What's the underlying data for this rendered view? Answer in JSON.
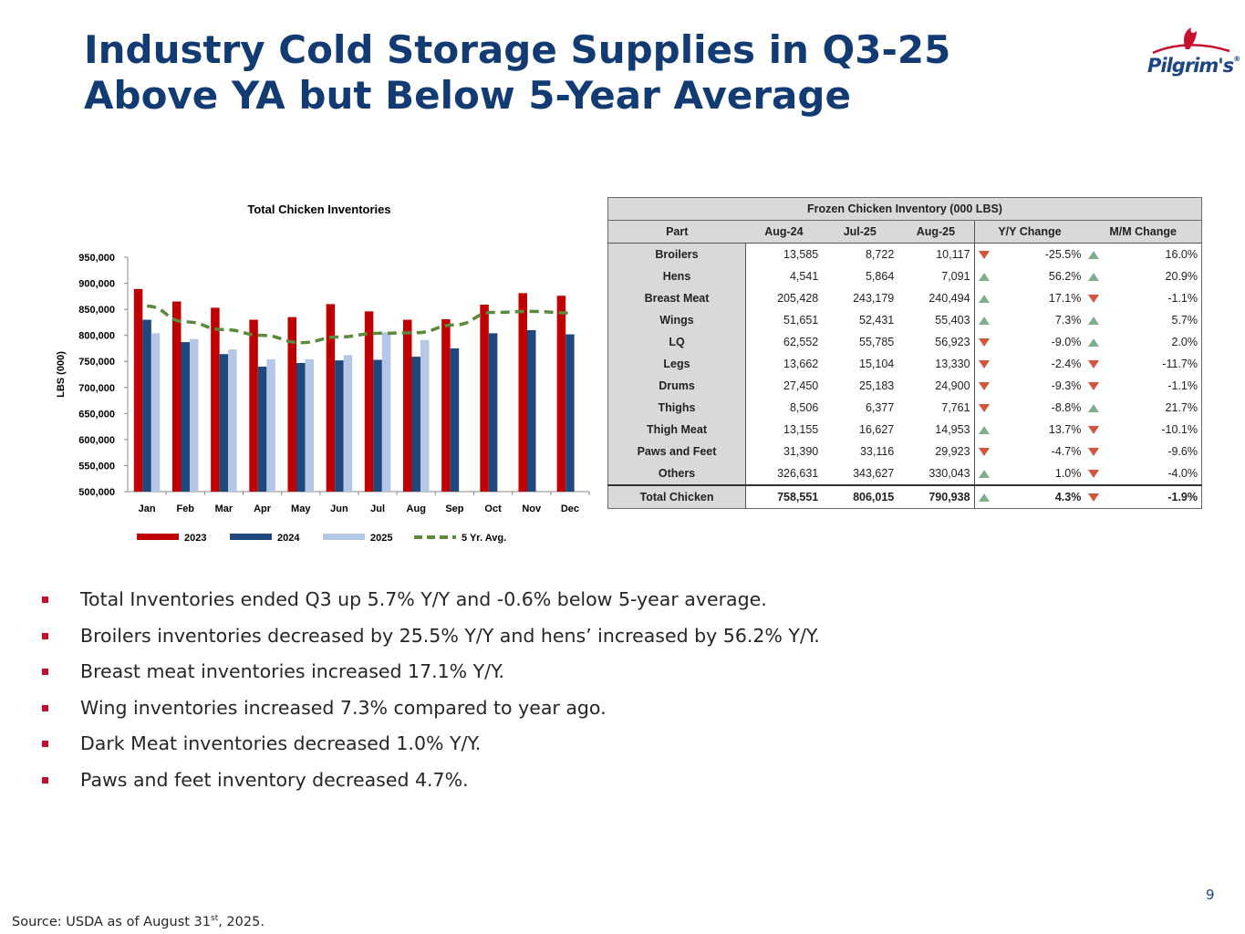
{
  "title": {
    "line1": "Industry Cold Storage Supplies in Q3-25",
    "line2": "Above YA but Below 5-Year Average"
  },
  "logo": {
    "text": "Pilgrim's",
    "reg": "®"
  },
  "colors": {
    "title": "#123a73",
    "s2023": "#c00000",
    "s2024": "#1f497d",
    "s2025": "#b4c7e7",
    "avg": "#5b8a3c",
    "bullet": "#c8102e",
    "up": "#7fae8c",
    "down": "#d2553c"
  },
  "chart_data": {
    "type": "bar",
    "title": "Total Chicken Inventories",
    "xlabel": "",
    "ylabel": "LBS (000)",
    "ylim": [
      500000,
      950000
    ],
    "yticks": [
      500000,
      550000,
      600000,
      650000,
      700000,
      750000,
      800000,
      850000,
      900000,
      950000
    ],
    "ytick_labels": [
      "500,000",
      "550,000",
      "600,000",
      "650,000",
      "700,000",
      "750,000",
      "800,000",
      "850,000",
      "900,000",
      "950,000"
    ],
    "categories": [
      "Jan",
      "Feb",
      "Mar",
      "Apr",
      "May",
      "Jun",
      "Jul",
      "Aug",
      "Sep",
      "Oct",
      "Nov",
      "Dec"
    ],
    "series": [
      {
        "name": "2023",
        "kind": "bar",
        "values": [
          889000,
          865000,
          853000,
          830000,
          835000,
          860000,
          846000,
          830000,
          831000,
          859000,
          881000,
          876000
        ]
      },
      {
        "name": "2024",
        "kind": "bar",
        "values": [
          830000,
          787000,
          764000,
          740000,
          747000,
          752000,
          753000,
          759000,
          775000,
          804000,
          810000,
          802000
        ]
      },
      {
        "name": "2025",
        "kind": "bar",
        "values": [
          804000,
          793000,
          773000,
          754000,
          754000,
          762000,
          806000,
          791000,
          null,
          null,
          null,
          null
        ]
      },
      {
        "name": "5 Yr. Avg.",
        "kind": "line",
        "style": "dashed",
        "values": [
          856000,
          826000,
          811000,
          800000,
          786000,
          797000,
          804000,
          805000,
          820000,
          844000,
          846000,
          843000
        ]
      }
    ],
    "legend_position": "bottom",
    "grid": false
  },
  "table": {
    "caption": "Frozen Chicken Inventory (000 LBS)",
    "headers": [
      "Part",
      "Aug-24",
      "Jul-25",
      "Aug-25",
      "Y/Y Change",
      "M/M Change"
    ],
    "rows": [
      {
        "part": "Broilers",
        "aug24": "13,585",
        "jul25": "8,722",
        "aug25": "10,117",
        "yy": "-25.5%",
        "yy_dir": "down",
        "mm": "16.0%",
        "mm_dir": "up"
      },
      {
        "part": "Hens",
        "aug24": "4,541",
        "jul25": "5,864",
        "aug25": "7,091",
        "yy": "56.2%",
        "yy_dir": "up",
        "mm": "20.9%",
        "mm_dir": "up"
      },
      {
        "part": "Breast Meat",
        "aug24": "205,428",
        "jul25": "243,179",
        "aug25": "240,494",
        "yy": "17.1%",
        "yy_dir": "up",
        "mm": "-1.1%",
        "mm_dir": "down"
      },
      {
        "part": "Wings",
        "aug24": "51,651",
        "jul25": "52,431",
        "aug25": "55,403",
        "yy": "7.3%",
        "yy_dir": "up",
        "mm": "5.7%",
        "mm_dir": "up"
      },
      {
        "part": "LQ",
        "aug24": "62,552",
        "jul25": "55,785",
        "aug25": "56,923",
        "yy": "-9.0%",
        "yy_dir": "down",
        "mm": "2.0%",
        "mm_dir": "up"
      },
      {
        "part": "Legs",
        "aug24": "13,662",
        "jul25": "15,104",
        "aug25": "13,330",
        "yy": "-2.4%",
        "yy_dir": "down",
        "mm": "-11.7%",
        "mm_dir": "down"
      },
      {
        "part": "Drums",
        "aug24": "27,450",
        "jul25": "25,183",
        "aug25": "24,900",
        "yy": "-9.3%",
        "yy_dir": "down",
        "mm": "-1.1%",
        "mm_dir": "down"
      },
      {
        "part": "Thighs",
        "aug24": "8,506",
        "jul25": "6,377",
        "aug25": "7,761",
        "yy": "-8.8%",
        "yy_dir": "down",
        "mm": "21.7%",
        "mm_dir": "up"
      },
      {
        "part": "Thigh Meat",
        "aug24": "13,155",
        "jul25": "16,627",
        "aug25": "14,953",
        "yy": "13.7%",
        "yy_dir": "up",
        "mm": "-10.1%",
        "mm_dir": "down"
      },
      {
        "part": "Paws and Feet",
        "aug24": "31,390",
        "jul25": "33,116",
        "aug25": "29,923",
        "yy": "-4.7%",
        "yy_dir": "down",
        "mm": "-9.6%",
        "mm_dir": "down"
      },
      {
        "part": "Others",
        "aug24": "326,631",
        "jul25": "343,627",
        "aug25": "330,043",
        "yy": "1.0%",
        "yy_dir": "up",
        "mm": "-4.0%",
        "mm_dir": "down"
      }
    ],
    "total": {
      "part": "Total Chicken",
      "aug24": "758,551",
      "jul25": "806,015",
      "aug25": "790,938",
      "yy": "4.3%",
      "yy_dir": "up",
      "mm": "-1.9%",
      "mm_dir": "down"
    }
  },
  "bullets": [
    "Total Inventories ended Q3 up 5.7% Y/Y and -0.6% below 5-year average.",
    "Broilers inventories decreased by 25.5% Y/Y and hens’ increased by 56.2% Y/Y.",
    "Breast meat inventories increased 17.1% Y/Y.",
    "Wing inventories increased 7.3% compared to year ago.",
    "Dark Meat inventories decreased 1.0% Y/Y.",
    "Paws and feet inventory decreased 4.7%."
  ],
  "page_number": "9",
  "source": {
    "prefix": "Source: USDA as of August 31",
    "sup": "st",
    "suffix": ", 2025."
  }
}
